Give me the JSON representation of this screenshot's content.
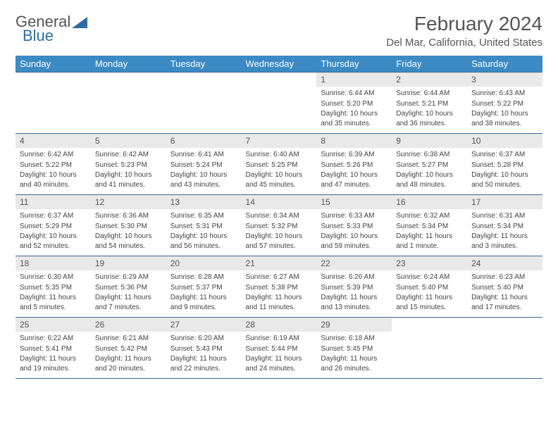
{
  "logo": {
    "text1": "General",
    "text2": "Blue"
  },
  "title": "February 2024",
  "location": "Del Mar, California, United States",
  "colors": {
    "header_bg": "#3b8ac4",
    "row_border": "#3b6a94",
    "daynum_bg": "#e9e9e9",
    "logo_blue": "#2e6da4"
  },
  "weekdays": [
    "Sunday",
    "Monday",
    "Tuesday",
    "Wednesday",
    "Thursday",
    "Friday",
    "Saturday"
  ],
  "weeks": [
    [
      null,
      null,
      null,
      null,
      {
        "n": "1",
        "sr": "Sunrise: 6:44 AM",
        "ss": "Sunset: 5:20 PM",
        "dl": "Daylight: 10 hours and 35 minutes."
      },
      {
        "n": "2",
        "sr": "Sunrise: 6:44 AM",
        "ss": "Sunset: 5:21 PM",
        "dl": "Daylight: 10 hours and 36 minutes."
      },
      {
        "n": "3",
        "sr": "Sunrise: 6:43 AM",
        "ss": "Sunset: 5:22 PM",
        "dl": "Daylight: 10 hours and 38 minutes."
      }
    ],
    [
      {
        "n": "4",
        "sr": "Sunrise: 6:42 AM",
        "ss": "Sunset: 5:22 PM",
        "dl": "Daylight: 10 hours and 40 minutes."
      },
      {
        "n": "5",
        "sr": "Sunrise: 6:42 AM",
        "ss": "Sunset: 5:23 PM",
        "dl": "Daylight: 10 hours and 41 minutes."
      },
      {
        "n": "6",
        "sr": "Sunrise: 6:41 AM",
        "ss": "Sunset: 5:24 PM",
        "dl": "Daylight: 10 hours and 43 minutes."
      },
      {
        "n": "7",
        "sr": "Sunrise: 6:40 AM",
        "ss": "Sunset: 5:25 PM",
        "dl": "Daylight: 10 hours and 45 minutes."
      },
      {
        "n": "8",
        "sr": "Sunrise: 6:39 AM",
        "ss": "Sunset: 5:26 PM",
        "dl": "Daylight: 10 hours and 47 minutes."
      },
      {
        "n": "9",
        "sr": "Sunrise: 6:38 AM",
        "ss": "Sunset: 5:27 PM",
        "dl": "Daylight: 10 hours and 48 minutes."
      },
      {
        "n": "10",
        "sr": "Sunrise: 6:37 AM",
        "ss": "Sunset: 5:28 PM",
        "dl": "Daylight: 10 hours and 50 minutes."
      }
    ],
    [
      {
        "n": "11",
        "sr": "Sunrise: 6:37 AM",
        "ss": "Sunset: 5:29 PM",
        "dl": "Daylight: 10 hours and 52 minutes."
      },
      {
        "n": "12",
        "sr": "Sunrise: 6:36 AM",
        "ss": "Sunset: 5:30 PM",
        "dl": "Daylight: 10 hours and 54 minutes."
      },
      {
        "n": "13",
        "sr": "Sunrise: 6:35 AM",
        "ss": "Sunset: 5:31 PM",
        "dl": "Daylight: 10 hours and 56 minutes."
      },
      {
        "n": "14",
        "sr": "Sunrise: 6:34 AM",
        "ss": "Sunset: 5:32 PM",
        "dl": "Daylight: 10 hours and 57 minutes."
      },
      {
        "n": "15",
        "sr": "Sunrise: 6:33 AM",
        "ss": "Sunset: 5:33 PM",
        "dl": "Daylight: 10 hours and 59 minutes."
      },
      {
        "n": "16",
        "sr": "Sunrise: 6:32 AM",
        "ss": "Sunset: 5:34 PM",
        "dl": "Daylight: 11 hours and 1 minute."
      },
      {
        "n": "17",
        "sr": "Sunrise: 6:31 AM",
        "ss": "Sunset: 5:34 PM",
        "dl": "Daylight: 11 hours and 3 minutes."
      }
    ],
    [
      {
        "n": "18",
        "sr": "Sunrise: 6:30 AM",
        "ss": "Sunset: 5:35 PM",
        "dl": "Daylight: 11 hours and 5 minutes."
      },
      {
        "n": "19",
        "sr": "Sunrise: 6:29 AM",
        "ss": "Sunset: 5:36 PM",
        "dl": "Daylight: 11 hours and 7 minutes."
      },
      {
        "n": "20",
        "sr": "Sunrise: 6:28 AM",
        "ss": "Sunset: 5:37 PM",
        "dl": "Daylight: 11 hours and 9 minutes."
      },
      {
        "n": "21",
        "sr": "Sunrise: 6:27 AM",
        "ss": "Sunset: 5:38 PM",
        "dl": "Daylight: 11 hours and 11 minutes."
      },
      {
        "n": "22",
        "sr": "Sunrise: 6:26 AM",
        "ss": "Sunset: 5:39 PM",
        "dl": "Daylight: 11 hours and 13 minutes."
      },
      {
        "n": "23",
        "sr": "Sunrise: 6:24 AM",
        "ss": "Sunset: 5:40 PM",
        "dl": "Daylight: 11 hours and 15 minutes."
      },
      {
        "n": "24",
        "sr": "Sunrise: 6:23 AM",
        "ss": "Sunset: 5:40 PM",
        "dl": "Daylight: 11 hours and 17 minutes."
      }
    ],
    [
      {
        "n": "25",
        "sr": "Sunrise: 6:22 AM",
        "ss": "Sunset: 5:41 PM",
        "dl": "Daylight: 11 hours and 19 minutes."
      },
      {
        "n": "26",
        "sr": "Sunrise: 6:21 AM",
        "ss": "Sunset: 5:42 PM",
        "dl": "Daylight: 11 hours and 20 minutes."
      },
      {
        "n": "27",
        "sr": "Sunrise: 6:20 AM",
        "ss": "Sunset: 5:43 PM",
        "dl": "Daylight: 11 hours and 22 minutes."
      },
      {
        "n": "28",
        "sr": "Sunrise: 6:19 AM",
        "ss": "Sunset: 5:44 PM",
        "dl": "Daylight: 11 hours and 24 minutes."
      },
      {
        "n": "29",
        "sr": "Sunrise: 6:18 AM",
        "ss": "Sunset: 5:45 PM",
        "dl": "Daylight: 11 hours and 26 minutes."
      },
      null,
      null
    ]
  ]
}
